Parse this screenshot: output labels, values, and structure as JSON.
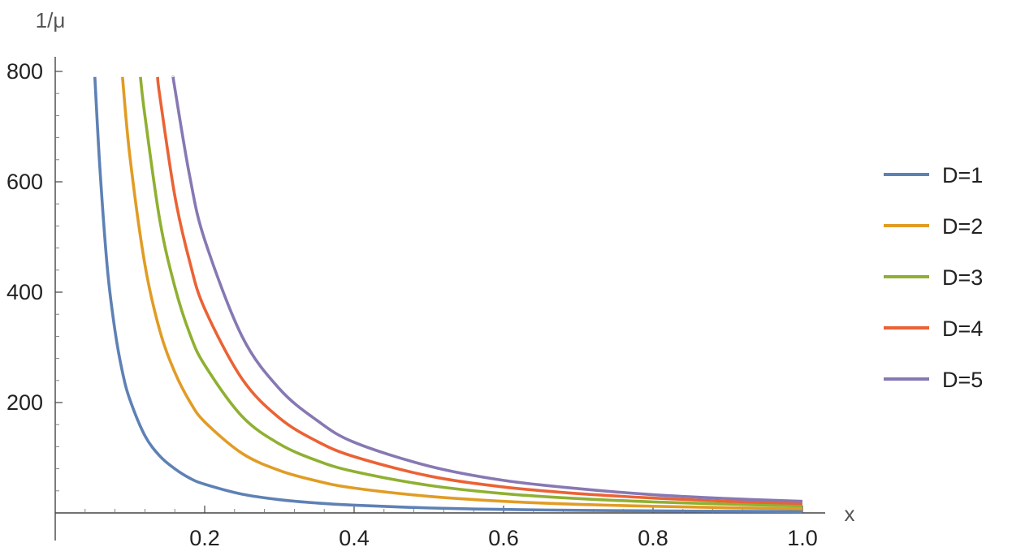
{
  "chart_data": {
    "type": "line",
    "title": "",
    "xlabel": "x",
    "ylabel": "1/μ",
    "xlim": [
      0,
      1.0
    ],
    "ylim": [
      0,
      800
    ],
    "x_ticks": [
      0.2,
      0.4,
      0.6,
      0.8,
      1.0
    ],
    "x_tick_labels": [
      "0.2",
      "0.4",
      "0.6",
      "0.8",
      "1.0"
    ],
    "y_ticks": [
      200,
      400,
      600,
      800
    ],
    "y_tick_labels": [
      "200",
      "400",
      "600",
      "800"
    ],
    "grid": false,
    "legend_position": "right",
    "series": [
      {
        "name": "D=1",
        "color": "#5e81b5",
        "x": [
          0.053,
          0.06,
          0.07,
          0.08,
          0.09,
          0.1,
          0.12,
          0.14,
          0.16,
          0.18,
          0.2,
          0.25,
          0.3,
          0.35,
          0.4,
          0.5,
          0.6,
          0.7,
          0.8,
          0.9,
          1.0
        ],
        "y": [
          790,
          620,
          440,
          330,
          255,
          205,
          140,
          103,
          80,
          63,
          52,
          34,
          24,
          18,
          14,
          9,
          6.3,
          4.7,
          3.7,
          3.0,
          2.5
        ]
      },
      {
        "name": "D=2",
        "color": "#e19c24",
        "x": [
          0.09,
          0.1,
          0.12,
          0.14,
          0.16,
          0.18,
          0.2,
          0.25,
          0.3,
          0.35,
          0.4,
          0.5,
          0.6,
          0.7,
          0.8,
          0.9,
          1.0
        ],
        "y": [
          790,
          645,
          450,
          330,
          255,
          202,
          165,
          108,
          77,
          58,
          45,
          30,
          21,
          15.5,
          12,
          9.5,
          7.5
        ]
      },
      {
        "name": "D=3",
        "color": "#8fb032",
        "x": [
          0.114,
          0.12,
          0.14,
          0.16,
          0.18,
          0.2,
          0.25,
          0.3,
          0.35,
          0.4,
          0.5,
          0.6,
          0.7,
          0.8,
          0.9,
          1.0
        ],
        "y": [
          790,
          720,
          530,
          410,
          325,
          268,
          175,
          125,
          95,
          75,
          50,
          35,
          26,
          20,
          16,
          12.5
        ]
      },
      {
        "name": "D=4",
        "color": "#eb6235",
        "x": [
          0.137,
          0.14,
          0.16,
          0.18,
          0.2,
          0.25,
          0.3,
          0.35,
          0.4,
          0.5,
          0.6,
          0.7,
          0.8,
          0.9,
          1.0
        ],
        "y": [
          790,
          755,
          575,
          455,
          370,
          243,
          172,
          130,
          102,
          67,
          47,
          35,
          27,
          21,
          17
        ]
      },
      {
        "name": "D=5",
        "color": "#8778b3",
        "x": [
          0.158,
          0.16,
          0.18,
          0.2,
          0.25,
          0.3,
          0.35,
          0.4,
          0.5,
          0.6,
          0.7,
          0.8,
          0.9,
          1.0
        ],
        "y": [
          790,
          770,
          610,
          495,
          320,
          225,
          168,
          128,
          85,
          59,
          44,
          33,
          26,
          21
        ]
      }
    ]
  }
}
